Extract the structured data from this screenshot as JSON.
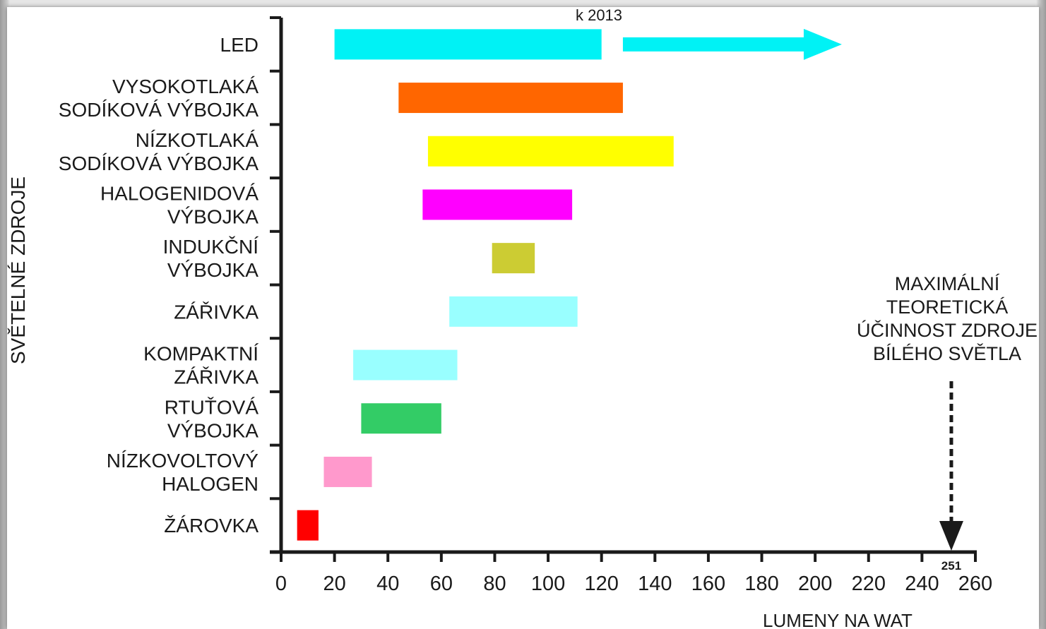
{
  "chart_data": {
    "type": "bar",
    "orientation": "horizontal-range",
    "title": "",
    "ylabel": "SVĚTELNÉ ZDROJE",
    "xlabel": "LUMENY NA WAT",
    "xlim": [
      0,
      260
    ],
    "x_ticks": [
      "0",
      "20",
      "40",
      "60",
      "80",
      "100",
      "120",
      "140",
      "160",
      "180",
      "200",
      "220",
      "240",
      "260"
    ],
    "grid": false,
    "categories": [
      {
        "lines": [
          "LED"
        ],
        "start": 20,
        "end": 120,
        "color": "#00f2f5"
      },
      {
        "lines": [
          "VYSOKOTLAKÁ",
          "SODÍKOVÁ VÝBOJKA"
        ],
        "start": 44,
        "end": 128,
        "color": "#ff6600"
      },
      {
        "lines": [
          "NÍZKOTLAKÁ",
          "SODÍKOVÁ VÝBOJKA"
        ],
        "start": 55,
        "end": 147,
        "color": "#ffff00"
      },
      {
        "lines": [
          "HALOGENIDOVÁ",
          "VÝBOJKA"
        ],
        "start": 53,
        "end": 109,
        "color": "#ff00ff"
      },
      {
        "lines": [
          "INDUKČNÍ",
          "VÝBOJKA"
        ],
        "start": 79,
        "end": 95,
        "color": "#cccc33"
      },
      {
        "lines": [
          "ZÁŘIVKA"
        ],
        "start": 63,
        "end": 111,
        "color": "#99ffff"
      },
      {
        "lines": [
          "KOMPAKTNÍ",
          "ZÁŘIVKA"
        ],
        "start": 27,
        "end": 66,
        "color": "#99ffff"
      },
      {
        "lines": [
          "RTUŤOVÁ",
          "VÝBOJKA"
        ],
        "start": 30,
        "end": 60,
        "color": "#33cc66"
      },
      {
        "lines": [
          "NÍZKOVOLTOVÝ",
          "HALOGEN"
        ],
        "start": 16,
        "end": 34,
        "color": "#ff99cc"
      },
      {
        "lines": [
          "ŽÁROVKA"
        ],
        "start": 6,
        "end": 14,
        "color": "#ff0000"
      }
    ],
    "annotations": {
      "led_projection": {
        "label": "k 2013",
        "from": 128,
        "to": 210,
        "color": "#00f2f5"
      },
      "max_theoretical": {
        "value": 251,
        "value_label": "251",
        "lines": [
          "MAXIMÁLNÍ",
          "TEORETICKÁ",
          "ÚČINNOST ZDROJE",
          "BÍLÉHO SVĚTLA"
        ]
      }
    }
  }
}
